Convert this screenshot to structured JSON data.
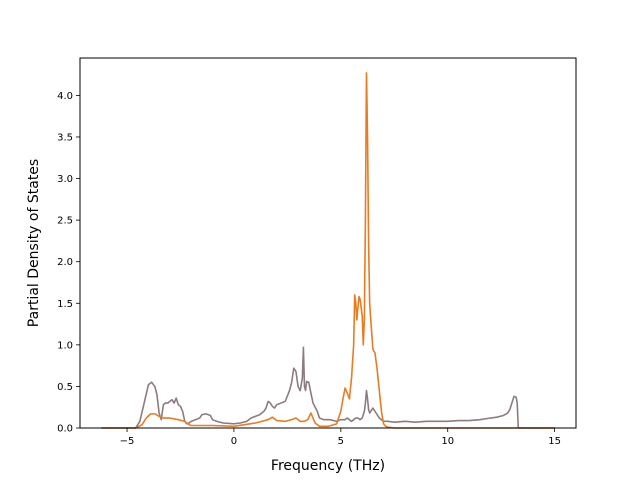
{
  "chart_data": {
    "type": "line",
    "title": "",
    "xlabel": "Frequency (THz)",
    "ylabel": "Partial Density of States",
    "xlim": [
      -7.2,
      16.0
    ],
    "ylim": [
      0.0,
      4.45
    ],
    "xticks": [
      -5,
      0,
      5,
      10,
      15
    ],
    "xtick_labels": [
      "−5",
      "0",
      "5",
      "10",
      "15"
    ],
    "yticks": [
      0.0,
      0.5,
      1.0,
      1.5,
      2.0,
      2.5,
      3.0,
      3.5,
      4.0
    ],
    "ytick_labels": [
      "0.0",
      "0.5",
      "1.0",
      "1.5",
      "2.0",
      "2.5",
      "3.0",
      "3.5",
      "4.0"
    ],
    "grid": false,
    "series": [
      {
        "color": "#8c7b7f",
        "x": [
          -6.2,
          -4.6,
          -4.4,
          -4.2,
          -4.0,
          -3.85,
          -3.7,
          -3.6,
          -3.5,
          -3.4,
          -3.3,
          -3.2,
          -3.1,
          -3.0,
          -2.9,
          -2.8,
          -2.7,
          -2.6,
          -2.5,
          -2.4,
          -2.3,
          -2.2,
          -2.1,
          -2.0,
          -1.8,
          -1.6,
          -1.5,
          -1.3,
          -1.1,
          -1.0,
          -0.8,
          -0.5,
          0.0,
          0.3,
          0.6,
          0.8,
          1.0,
          1.2,
          1.4,
          1.5,
          1.6,
          1.7,
          1.8,
          1.9,
          2.0,
          2.2,
          2.4,
          2.6,
          2.7,
          2.8,
          2.9,
          3.0,
          3.1,
          3.2,
          3.25,
          3.3,
          3.35,
          3.4,
          3.5,
          3.6,
          3.7,
          3.8,
          3.9,
          4.0,
          4.2,
          4.5,
          4.8,
          5.0,
          5.2,
          5.3,
          5.4,
          5.5,
          5.6,
          5.7,
          5.8,
          5.9,
          6.0,
          6.1,
          6.15,
          6.2,
          6.25,
          6.3,
          6.35,
          6.4,
          6.5,
          6.6,
          6.7,
          6.8,
          6.9,
          7.0,
          7.2,
          7.5,
          8.0,
          8.5,
          9.0,
          9.5,
          10.0,
          10.5,
          11.0,
          11.5,
          12.0,
          12.3,
          12.6,
          12.8,
          12.9,
          13.0,
          13.1,
          13.2,
          13.25,
          13.3,
          13.5,
          14.0,
          15.0
        ],
        "values": [
          0.0,
          0.0,
          0.08,
          0.3,
          0.52,
          0.55,
          0.5,
          0.4,
          0.18,
          0.1,
          0.28,
          0.3,
          0.3,
          0.32,
          0.34,
          0.3,
          0.36,
          0.28,
          0.26,
          0.2,
          0.08,
          0.05,
          0.06,
          0.08,
          0.1,
          0.12,
          0.16,
          0.17,
          0.15,
          0.1,
          0.08,
          0.06,
          0.05,
          0.06,
          0.08,
          0.12,
          0.14,
          0.16,
          0.2,
          0.24,
          0.32,
          0.3,
          0.26,
          0.24,
          0.28,
          0.3,
          0.32,
          0.45,
          0.55,
          0.72,
          0.68,
          0.5,
          0.45,
          0.6,
          0.97,
          0.5,
          0.45,
          0.56,
          0.55,
          0.42,
          0.3,
          0.25,
          0.2,
          0.12,
          0.1,
          0.1,
          0.08,
          0.1,
          0.1,
          0.12,
          0.1,
          0.08,
          0.1,
          0.12,
          0.12,
          0.1,
          0.12,
          0.2,
          0.3,
          0.45,
          0.35,
          0.22,
          0.18,
          0.2,
          0.24,
          0.2,
          0.16,
          0.12,
          0.1,
          0.08,
          0.08,
          0.07,
          0.08,
          0.07,
          0.08,
          0.08,
          0.08,
          0.09,
          0.09,
          0.1,
          0.12,
          0.13,
          0.15,
          0.18,
          0.22,
          0.3,
          0.38,
          0.37,
          0.3,
          0.0,
          0.0,
          0.0,
          0.0
        ]
      },
      {
        "color": "#e87c22",
        "x": [
          -6.2,
          -4.6,
          -4.3,
          -4.1,
          -3.9,
          -3.7,
          -3.5,
          -3.3,
          -3.0,
          -2.6,
          -2.3,
          -2.1,
          -2.0,
          -1.5,
          -1.0,
          0.0,
          1.0,
          1.3,
          1.6,
          1.8,
          2.0,
          2.4,
          2.7,
          2.9,
          3.1,
          3.3,
          3.45,
          3.6,
          3.8,
          4.0,
          4.4,
          4.8,
          5.0,
          5.1,
          5.2,
          5.3,
          5.4,
          5.5,
          5.6,
          5.65,
          5.7,
          5.75,
          5.8,
          5.85,
          5.9,
          6.0,
          6.05,
          6.1,
          6.15,
          6.2,
          6.25,
          6.3,
          6.35,
          6.4,
          6.5,
          6.6,
          6.7,
          6.8,
          6.9,
          7.0,
          7.1,
          7.2,
          7.5,
          8.0,
          10.0,
          13.0,
          13.3,
          15.0
        ],
        "values": [
          0.0,
          0.0,
          0.04,
          0.12,
          0.17,
          0.17,
          0.14,
          0.12,
          0.12,
          0.1,
          0.08,
          0.04,
          0.03,
          0.03,
          0.03,
          0.02,
          0.06,
          0.08,
          0.1,
          0.13,
          0.09,
          0.08,
          0.1,
          0.12,
          0.08,
          0.08,
          0.1,
          0.18,
          0.06,
          0.02,
          0.02,
          0.05,
          0.2,
          0.35,
          0.48,
          0.42,
          0.35,
          0.6,
          1.0,
          1.6,
          1.5,
          1.3,
          1.45,
          1.58,
          1.55,
          1.35,
          1.0,
          1.3,
          2.5,
          4.27,
          3.5,
          2.2,
          1.5,
          1.3,
          0.95,
          0.9,
          0.7,
          0.45,
          0.2,
          0.05,
          0.02,
          0.01,
          0.0,
          0.0,
          0.0,
          0.0,
          0.0,
          0.0
        ]
      }
    ]
  }
}
